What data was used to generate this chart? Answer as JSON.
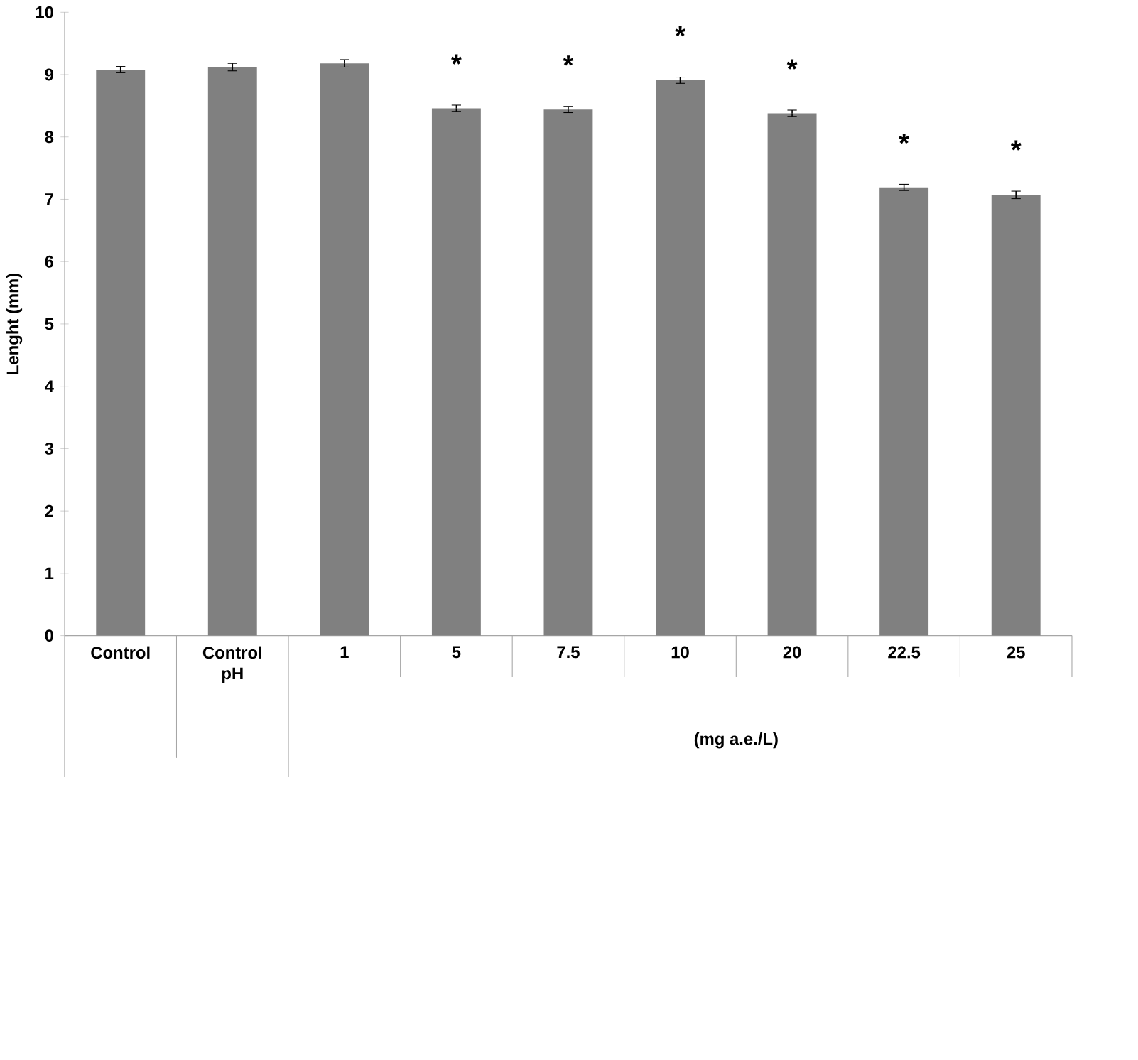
{
  "chart_data": {
    "type": "bar",
    "ylabel": "Lenght (mm)",
    "xlabel": "(mg a.e./L)",
    "categories": [
      "Control",
      "Control pH",
      "1",
      "5",
      "7.5",
      "10",
      "20",
      "22.5",
      "25"
    ],
    "values": [
      9.08,
      9.12,
      9.18,
      8.46,
      8.44,
      8.91,
      8.38,
      7.19,
      7.07
    ],
    "errors": [
      0.05,
      0.06,
      0.06,
      0.05,
      0.05,
      0.05,
      0.05,
      0.05,
      0.06
    ],
    "value_labels": [
      null,
      null,
      null,
      "*",
      "*",
      "*",
      "*",
      "*",
      "*"
    ],
    "color": "#808080",
    "ylim": [
      0,
      10
    ],
    "yticks": [
      0,
      1,
      2,
      3,
      4,
      5,
      6,
      7,
      8,
      9,
      10
    ],
    "grid": false
  }
}
